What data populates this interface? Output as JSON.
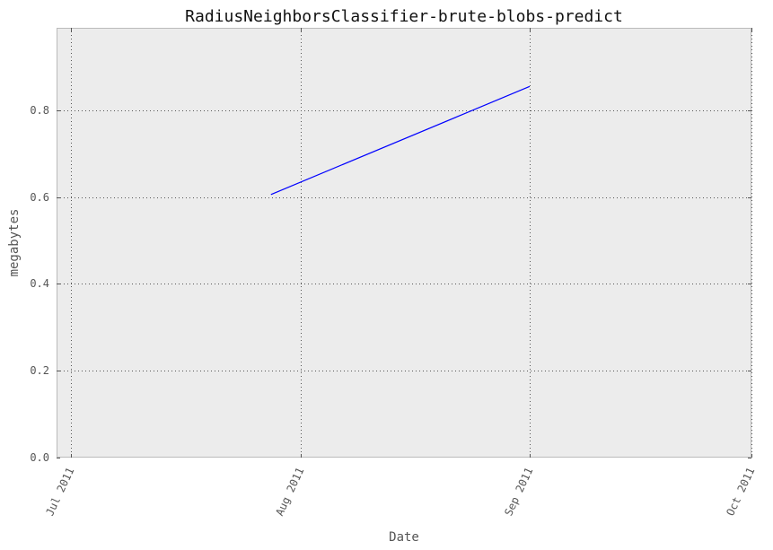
{
  "chart_data": {
    "type": "line",
    "title": "RadiusNeighborsClassifier-brute-blobs-predict",
    "xlabel": "Date",
    "ylabel": "megabytes",
    "x_tick_labels": [
      "Jul 2011",
      "Aug 2011",
      "Sep 2011",
      "Oct 2011"
    ],
    "y_tick_labels": [
      "0.0",
      "0.2",
      "0.4",
      "0.6",
      "0.8"
    ],
    "y_ticks": [
      0.0,
      0.2,
      0.4,
      0.6,
      0.8
    ],
    "ylim": [
      0,
      0.99
    ],
    "xlim": [
      "2011-06-29",
      "2011-10-01"
    ],
    "grid": true,
    "series": [
      {
        "color": "#0000ff",
        "points": [
          {
            "x": "2011-07-28",
            "y": 0.606
          },
          {
            "x": "2011-09-01",
            "y": 0.855
          }
        ]
      }
    ],
    "colors": {
      "plot_background": "#ececec",
      "frame": "#bbbbbb"
    }
  }
}
